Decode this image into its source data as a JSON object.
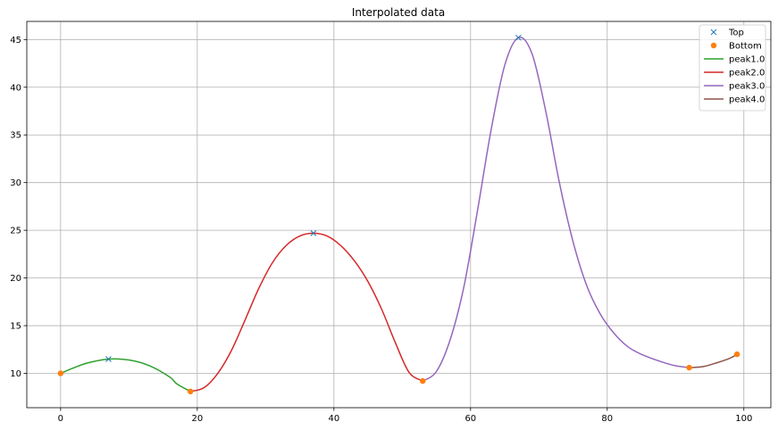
{
  "chart_data": {
    "type": "line",
    "title": "Interpolated data",
    "xlabel": "",
    "ylabel": "",
    "xlim": [
      -4.95,
      103.95
    ],
    "ylim": [
      6.4,
      46.9
    ],
    "xticks": [
      0,
      20,
      40,
      60,
      80,
      100
    ],
    "yticks": [
      10,
      15,
      20,
      25,
      30,
      35,
      40,
      45
    ],
    "grid": true,
    "legend_position": "top-right",
    "colors": {
      "top": "#1f77b4",
      "bottom": "#ff7f0e",
      "peak1": "#2ca02c",
      "peak2": "#d62728",
      "peak3": "#9467bd",
      "peak4": "#8c564b"
    },
    "markers": {
      "top": {
        "name": "Top",
        "marker": "x",
        "points": [
          [
            7,
            11.5
          ],
          [
            37,
            24.7
          ],
          [
            67,
            45.2
          ]
        ]
      },
      "bottom": {
        "name": "Bottom",
        "marker": "o",
        "points": [
          [
            0,
            10.0
          ],
          [
            19,
            8.1
          ],
          [
            53,
            9.2
          ],
          [
            92,
            10.6
          ],
          [
            99,
            12.0
          ]
        ]
      }
    },
    "series": [
      {
        "name": "peak1.0",
        "color_key": "peak1",
        "points": [
          [
            0,
            10.0
          ],
          [
            2,
            10.6
          ],
          [
            4,
            11.1
          ],
          [
            7,
            11.5
          ],
          [
            10,
            11.4
          ],
          [
            13,
            10.8
          ],
          [
            16,
            9.6
          ],
          [
            17,
            8.9
          ],
          [
            19,
            8.1
          ]
        ]
      },
      {
        "name": "peak2.0",
        "color_key": "peak2",
        "points": [
          [
            19,
            8.1
          ],
          [
            21,
            8.5
          ],
          [
            23,
            10.0
          ],
          [
            25,
            12.4
          ],
          [
            27,
            15.6
          ],
          [
            29,
            18.9
          ],
          [
            31,
            21.6
          ],
          [
            33,
            23.4
          ],
          [
            35,
            24.4
          ],
          [
            37,
            24.7
          ],
          [
            39,
            24.4
          ],
          [
            41,
            23.4
          ],
          [
            43,
            21.8
          ],
          [
            45,
            19.6
          ],
          [
            47,
            16.7
          ],
          [
            49,
            13.2
          ],
          [
            51,
            10.1
          ],
          [
            53,
            9.2
          ]
        ]
      },
      {
        "name": "peak3.0",
        "color_key": "peak3",
        "points": [
          [
            53,
            9.2
          ],
          [
            55,
            10.2
          ],
          [
            57,
            13.5
          ],
          [
            59,
            19.0
          ],
          [
            61,
            27.0
          ],
          [
            63,
            35.5
          ],
          [
            65,
            42.3
          ],
          [
            67,
            45.2
          ],
          [
            69,
            43.5
          ],
          [
            71,
            37.5
          ],
          [
            73,
            30.0
          ],
          [
            75,
            23.8
          ],
          [
            77,
            19.2
          ],
          [
            79,
            16.2
          ],
          [
            81,
            14.2
          ],
          [
            83,
            12.8
          ],
          [
            85,
            12.0
          ],
          [
            88,
            11.2
          ],
          [
            90,
            10.8
          ],
          [
            92,
            10.6
          ]
        ]
      },
      {
        "name": "peak4.0",
        "color_key": "peak4",
        "points": [
          [
            92,
            10.6
          ],
          [
            94,
            10.7
          ],
          [
            96,
            11.1
          ],
          [
            98,
            11.6
          ],
          [
            99,
            12.0
          ]
        ]
      }
    ]
  }
}
